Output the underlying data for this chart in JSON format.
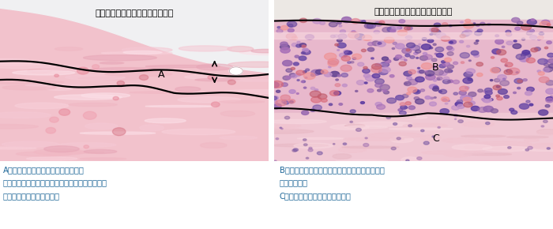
{
  "left_panel": {
    "title": "陰性対照材料が存在していた部位",
    "label_A": "A"
  },
  "right_panel": {
    "title": "陽性対照材料が存在していた部位",
    "label_B": "B",
    "label_C": "C"
  },
  "caption_left_line1": "A：炎症反応がみられる部位（矢印）",
  "caption_left_line2": "　　この部位の炎症領域幅を複数箇所計測して、",
  "caption_left_line3": "　　平均的な値を求める。",
  "caption_right_line1": "B：出血および炎症性細胞浸潤等が顕著にみられ",
  "caption_right_line2": "　　　る部位",
  "caption_right_line3": "C：筋線維の壊死がみられる部位",
  "fig_width": 7.0,
  "fig_height": 2.9,
  "background": "#ffffff",
  "caption_fontsize": 7.2,
  "title_fontsize": 8.0,
  "caption_color": "#1a6496"
}
